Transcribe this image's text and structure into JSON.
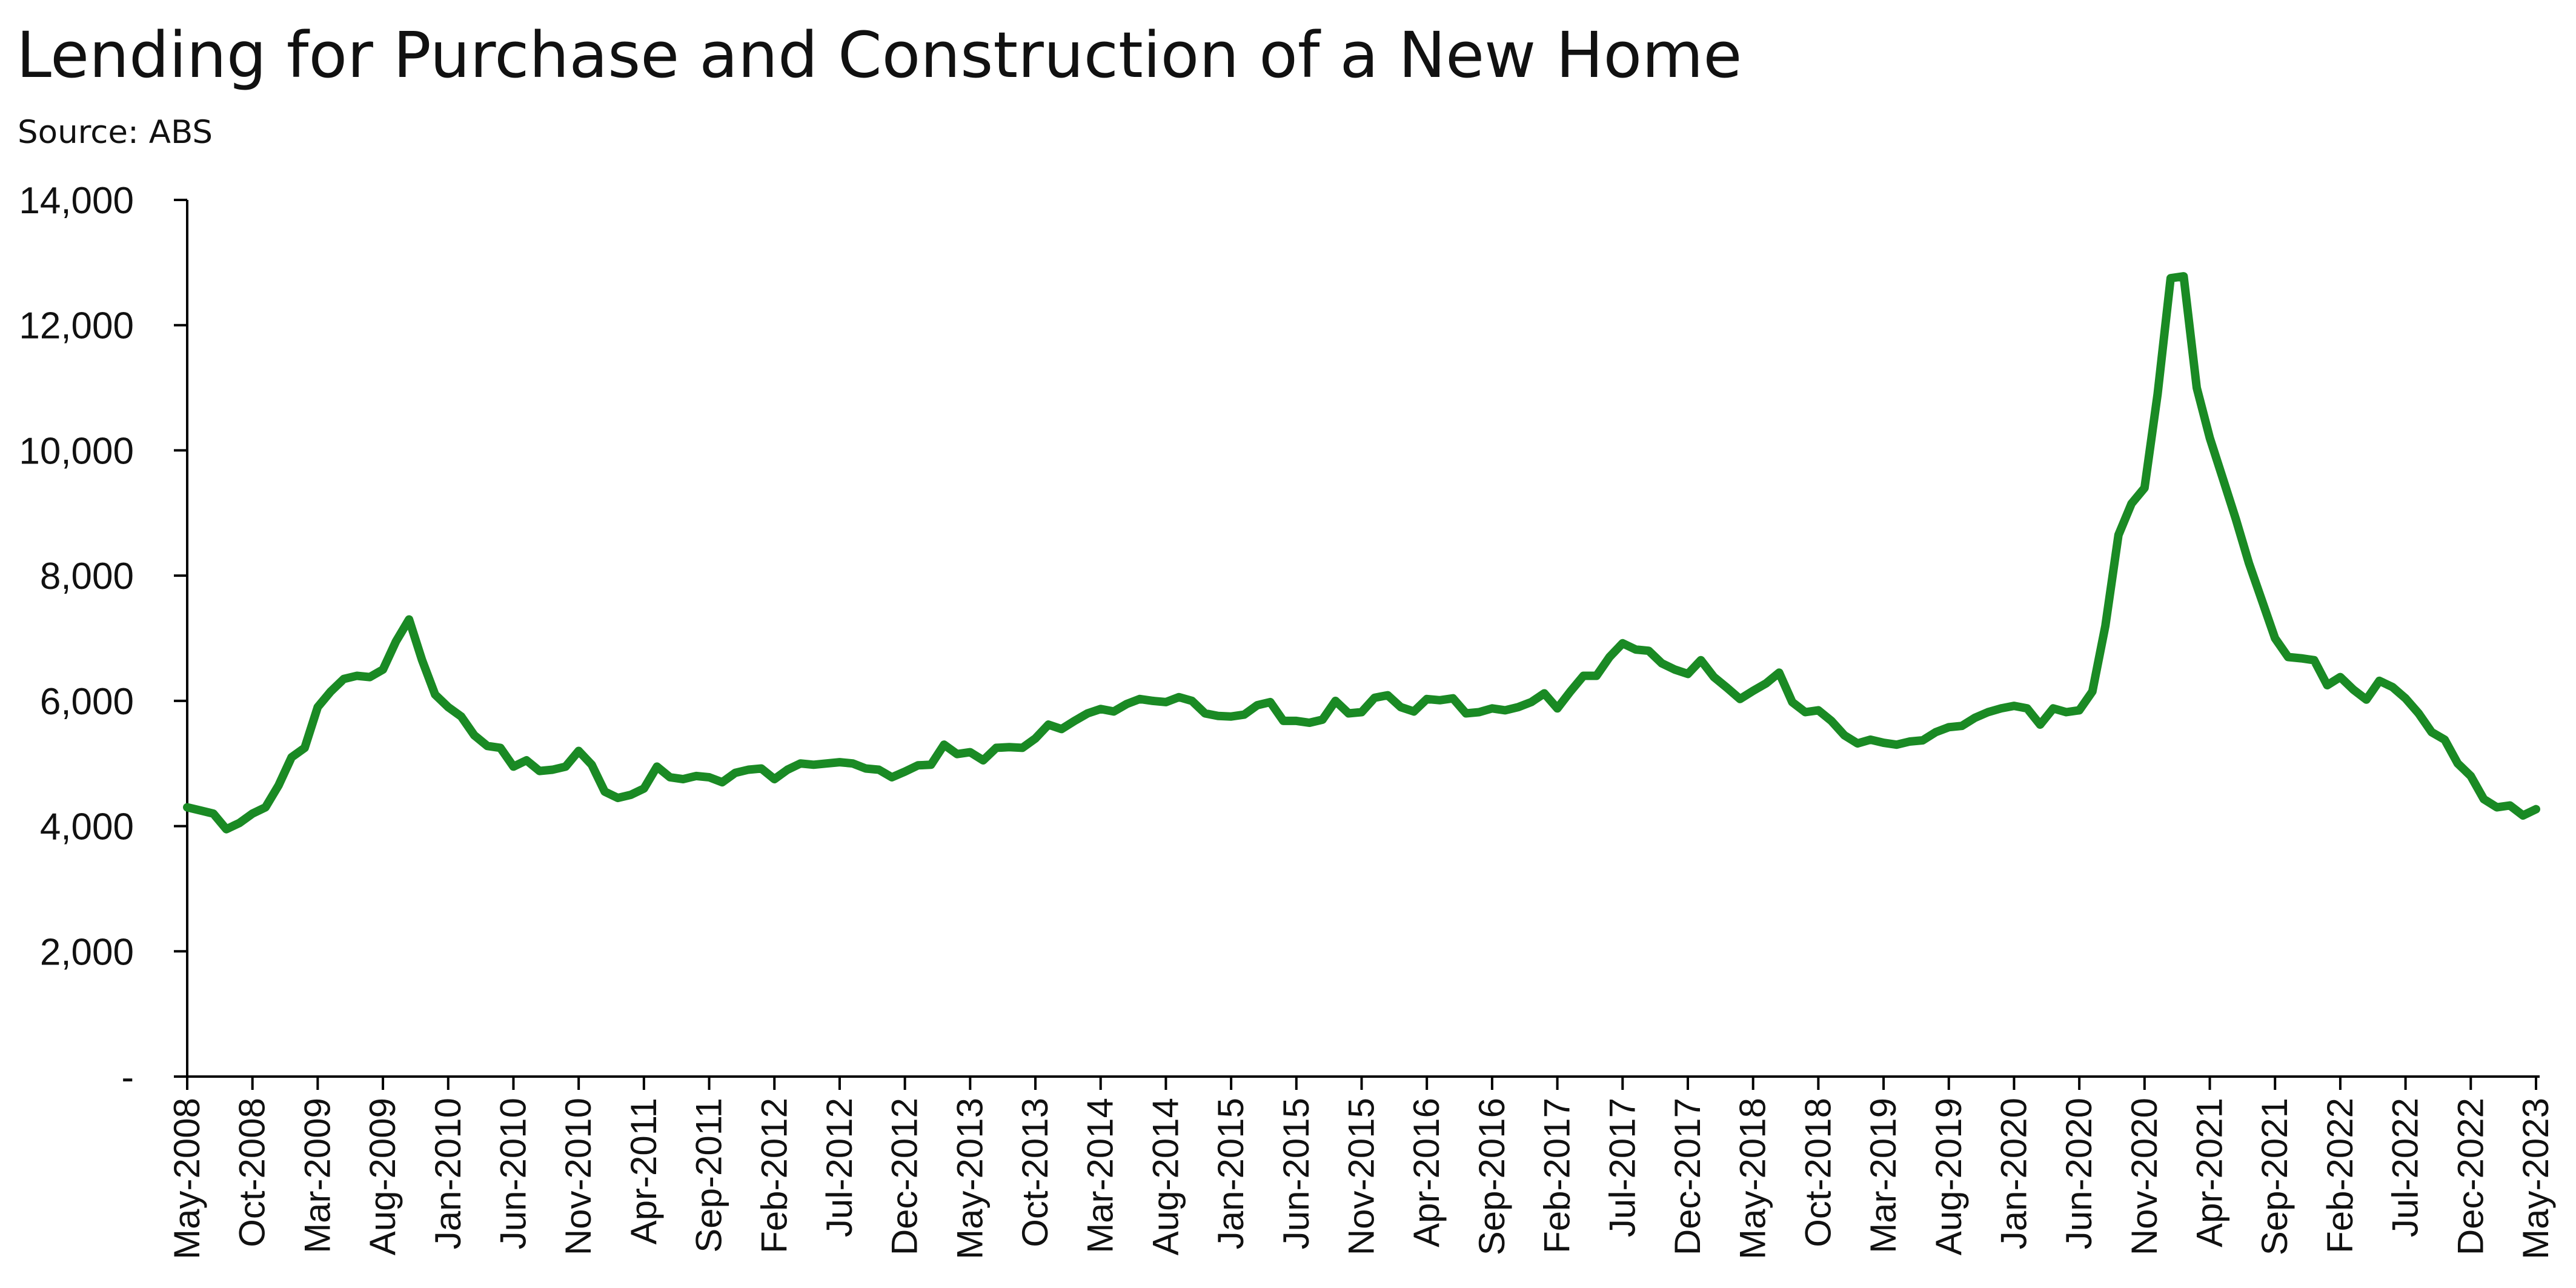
{
  "chart_data": {
    "type": "line",
    "title": "Lending for Purchase and Construction of a New Home",
    "subtitle": "Source: ABS",
    "xlabel": "",
    "ylabel": "",
    "ylim": [
      0,
      14000
    ],
    "y_ticks": [
      0,
      2000,
      4000,
      6000,
      8000,
      10000,
      12000,
      14000
    ],
    "y_tick_labels": [
      "-",
      "2,000",
      "4,000",
      "6,000",
      "8,000",
      "10,000",
      "12,000",
      "14,000"
    ],
    "x_start": "2008-05",
    "x_end": "2023-05",
    "x_tick_labels": [
      "May-2008",
      "Oct-2008",
      "Mar-2009",
      "Aug-2009",
      "Jan-2010",
      "Jun-2010",
      "Nov-2010",
      "Apr-2011",
      "Sep-2011",
      "Feb-2012",
      "Jul-2012",
      "Dec-2012",
      "May-2013",
      "Oct-2013",
      "Mar-2014",
      "Aug-2014",
      "Jan-2015",
      "Jun-2015",
      "Nov-2015",
      "Apr-2016",
      "Sep-2016",
      "Feb-2017",
      "Jul-2017",
      "Dec-2017",
      "May-2018",
      "Oct-2018",
      "Mar-2019",
      "Aug-2019",
      "Jan-2020",
      "Jun-2020",
      "Nov-2020",
      "Apr-2021",
      "Sep-2021",
      "Feb-2022",
      "Jul-2022",
      "Dec-2022",
      "May-2023"
    ],
    "grid": false,
    "legend": "none",
    "series": [
      {
        "color": "#1a8a24",
        "values": [
          4300,
          4250,
          4200,
          3950,
          4050,
          4200,
          4300,
          4650,
          5100,
          5250,
          5900,
          6150,
          6350,
          6400,
          6380,
          6500,
          6950,
          7300,
          6650,
          6100,
          5900,
          5750,
          5450,
          5280,
          5250,
          4950,
          5050,
          4880,
          4900,
          4950,
          5200,
          4980,
          4550,
          4450,
          4500,
          4600,
          4950,
          4780,
          4750,
          4800,
          4780,
          4700,
          4850,
          4900,
          4920,
          4750,
          4900,
          5000,
          4980,
          5000,
          5020,
          5000,
          4920,
          4900,
          4780,
          4870,
          4970,
          4980,
          5300,
          5150,
          5180,
          5050,
          5250,
          5260,
          5250,
          5400,
          5620,
          5550,
          5680,
          5800,
          5870,
          5830,
          5950,
          6030,
          6000,
          5980,
          6060,
          6000,
          5800,
          5760,
          5750,
          5780,
          5930,
          5980,
          5680,
          5680,
          5650,
          5700,
          6000,
          5800,
          5820,
          6050,
          6090,
          5900,
          5830,
          6030,
          6010,
          6040,
          5800,
          5820,
          5880,
          5850,
          5900,
          5980,
          6120,
          5880,
          6150,
          6400,
          6400,
          6700,
          6920,
          6820,
          6800,
          6600,
          6500,
          6430,
          6650,
          6380,
          6210,
          6030,
          6160,
          6280,
          6450,
          5980,
          5820,
          5850,
          5680,
          5450,
          5320,
          5380,
          5330,
          5300,
          5350,
          5370,
          5500,
          5580,
          5600,
          5730,
          5820,
          5880,
          5920,
          5880,
          5620,
          5880,
          5820,
          5850,
          6150,
          7200,
          8650,
          9150,
          9400,
          10900,
          12750,
          12780,
          11000,
          10200,
          9550,
          8900,
          8200,
          7600,
          7000,
          6700,
          6680,
          6650,
          6250,
          6380,
          6180,
          6020,
          6320,
          6220,
          6040,
          5800,
          5500,
          5380,
          5000,
          4800,
          4430,
          4300,
          4330,
          4170,
          4270
        ],
        "xlim_month_index": [
          0,
          180
        ]
      }
    ]
  }
}
